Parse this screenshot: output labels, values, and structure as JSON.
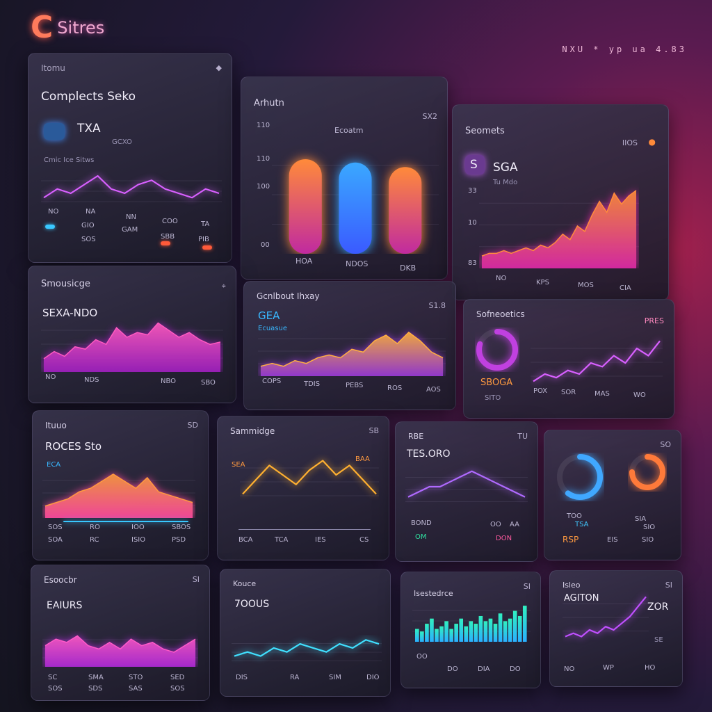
{
  "header": {
    "logo_letter": "C",
    "logo_text": "Sitres",
    "topright": "NXU * yp ua 4.83"
  },
  "panels": {
    "p1": {
      "title": "Itomu",
      "heading": "Complects Seko",
      "kpi": "TXA",
      "kpi_sub": "GCXO",
      "sub": "Cmic Ice Sitws",
      "labels": [
        "NO",
        "NA",
        "NN",
        "COO",
        "TA",
        "GIO",
        "GAM",
        "SOS",
        "SBB",
        "PIB"
      ]
    },
    "p2": {
      "title": "Arhutn",
      "corner": "SX2",
      "caption": "Ecoatm",
      "ticks": [
        "110",
        "110",
        "100",
        "00"
      ],
      "labels": [
        "HOA",
        "NDOS",
        "DKB"
      ]
    },
    "p3": {
      "title": "Seomets",
      "corner": "IIOS",
      "kpi": "SGA",
      "kpi_sub": "Tu Mdo",
      "letter": "S",
      "ticks": [
        "33",
        "10",
        "83"
      ],
      "labels": [
        "NO",
        "KPS",
        "MOS",
        "CIA"
      ]
    },
    "p4": {
      "title": "Smousicge",
      "kpi": "SEXA-NDO",
      "labels": [
        "NO",
        "NDS",
        "NBO",
        "SBO"
      ]
    },
    "p5": {
      "title": "Gcnlbout Ihxay",
      "corner": "S1.8",
      "kpi": "GEA",
      "sub": "Ecuasue",
      "labels": [
        "COPS",
        "TDIS",
        "PEBS",
        "ROS",
        "AOS"
      ]
    },
    "p6": {
      "title": "Sofneoetics",
      "corner": "PRES",
      "kpi": "SBOGA",
      "sub": "SITO",
      "labels": [
        "POX",
        "SOR",
        "MAS",
        "WO"
      ]
    },
    "p7": {
      "title": "Ituuo",
      "corner": "SD",
      "kpi": "ROCES Sto",
      "sub": "ECA",
      "labels": [
        "SOS",
        "RO",
        "IOO",
        "SBOS",
        "SOA",
        "RC",
        "ISIO",
        "PSD"
      ]
    },
    "p8": {
      "title": "Sammidge",
      "corner": "SB",
      "sub": "SEA",
      "labels": [
        "BAA",
        "BCA",
        "TCA",
        "IES",
        "CS"
      ]
    },
    "p9": {
      "title": "RBE",
      "corner": "TU",
      "kpi": "TES.ORO",
      "labels": [
        "BOND",
        "OO",
        "AA",
        "OM",
        "DON"
      ]
    },
    "p10": {
      "corner": "SO",
      "labels": [
        "TOO",
        "TSA",
        "SIA",
        "SIO",
        "RSP",
        "EIS",
        "SIO"
      ]
    },
    "p11": {
      "title": "Esoocbr",
      "corner": "SI",
      "kpi": "EAIURS",
      "labels": [
        "SC",
        "SMA",
        "STO",
        "SED",
        "SOS",
        "SDS",
        "SAS",
        "SOS"
      ]
    },
    "p12": {
      "title": "Kouce",
      "kpi": "7OOUS",
      "labels": [
        "DIS",
        "RA",
        "SIM",
        "DIO"
      ]
    },
    "p13": {
      "title": "Isestedrce",
      "corner": "SI",
      "labels": [
        "OO",
        "DO",
        "DIA",
        "DO"
      ]
    },
    "p14": {
      "title": "Isleo",
      "corner": "SI",
      "kpi": "AGITON",
      "kpi2": "ZOR",
      "sub": "SE",
      "labels": [
        "NO",
        "WP",
        "HO"
      ]
    }
  },
  "chart_data": [
    {
      "type": "line",
      "panel": "p1",
      "series": [
        {
          "values": [
            3,
            5,
            4,
            6,
            8,
            5,
            4,
            6,
            7,
            5,
            4,
            3,
            5,
            4
          ]
        }
      ]
    },
    {
      "type": "bar",
      "panel": "p2",
      "categories": [
        "HOA",
        "NDOS",
        "DKB"
      ],
      "series": [
        {
          "values": [
            85,
            82,
            78
          ]
        }
      ],
      "colors": [
        "#ff8a3a",
        "#3aa8ff",
        "#ff8a3a"
      ]
    },
    {
      "type": "area",
      "panel": "p3",
      "series": [
        {
          "values": [
            4,
            5,
            5,
            6,
            5,
            6,
            7,
            6,
            8,
            7,
            9,
            12,
            10,
            15,
            13,
            19,
            24,
            20,
            27,
            23,
            26,
            28
          ]
        }
      ],
      "colors": [
        "#ff8c3c",
        "#e02aa8"
      ]
    },
    {
      "type": "area",
      "panel": "p4",
      "series": [
        {
          "values": [
            5,
            8,
            6,
            10,
            9,
            13,
            11,
            18,
            14,
            16,
            15,
            20,
            17,
            14,
            16,
            13,
            11,
            12
          ]
        }
      ],
      "colors": [
        "#ff5ac0",
        "#a020c0"
      ]
    },
    {
      "type": "area",
      "panel": "p5",
      "series": [
        {
          "values": [
            3,
            4,
            3,
            5,
            4,
            6,
            7,
            6,
            9,
            8,
            12,
            14,
            11,
            15,
            12,
            8,
            6
          ]
        }
      ],
      "colors": [
        "#ffb040",
        "#9a3ad8"
      ]
    },
    {
      "type": "line",
      "panel": "p6",
      "series": [
        {
          "values": [
            2,
            4,
            3,
            5,
            4,
            7,
            6,
            9,
            7,
            11,
            9,
            13
          ]
        }
      ],
      "colors": [
        "#d860ff"
      ]
    },
    {
      "type": "area",
      "panel": "p7",
      "series": [
        {
          "values": [
            3,
            4,
            5,
            7,
            8,
            10,
            12,
            10,
            8,
            11,
            7,
            6,
            5,
            4
          ]
        }
      ],
      "colors": [
        "#ff9a40",
        "#ff4aa0"
      ]
    },
    {
      "type": "line",
      "panel": "p8",
      "series": [
        {
          "values": [
            3,
            6,
            9,
            7,
            5,
            8,
            10,
            7,
            9,
            6,
            3
          ]
        }
      ],
      "colors": [
        "#ffb030"
      ]
    },
    {
      "type": "line",
      "panel": "p9",
      "series": [
        {
          "values": [
            3,
            4,
            5,
            5,
            6,
            7,
            8,
            7,
            6,
            5,
            4,
            3
          ]
        }
      ],
      "colors": [
        "#b06aff"
      ]
    },
    {
      "type": "line",
      "panel": "p10",
      "series": [
        {
          "values": [
            2,
            4,
            6,
            8,
            10
          ]
        }
      ],
      "colors": [
        "#40c8ff"
      ]
    },
    {
      "type": "area",
      "panel": "p11",
      "series": [
        {
          "values": [
            6,
            8,
            7,
            9,
            6,
            5,
            7,
            5,
            8,
            6,
            7,
            5,
            4,
            6,
            8
          ]
        }
      ],
      "colors": [
        "#ff5ac8",
        "#b02ad8"
      ]
    },
    {
      "type": "line",
      "panel": "p12",
      "series": [
        {
          "values": [
            3,
            4,
            3,
            5,
            4,
            6,
            5,
            4,
            6,
            5,
            7,
            6
          ]
        }
      ],
      "colors": [
        "#40e0ff"
      ]
    },
    {
      "type": "bar",
      "panel": "p13",
      "series": [
        {
          "values": [
            5,
            4,
            7,
            9,
            5,
            6,
            8,
            5,
            7,
            9,
            6,
            8,
            7,
            10,
            8,
            9,
            7,
            11,
            8,
            9,
            12,
            10,
            14
          ]
        }
      ],
      "colors": [
        "#30f0c0",
        "#2ab0ff"
      ]
    },
    {
      "type": "line",
      "panel": "p14",
      "series": [
        {
          "values": [
            2,
            3,
            2,
            4,
            3,
            5,
            4,
            6,
            8,
            11,
            14
          ]
        }
      ],
      "colors": [
        "#c050ff"
      ]
    }
  ]
}
